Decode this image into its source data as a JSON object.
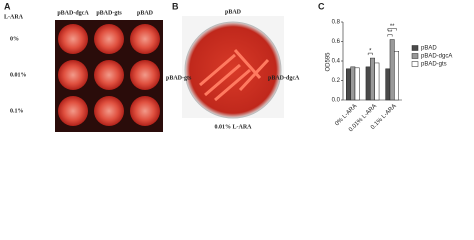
{
  "panel_a": {
    "label": "A",
    "row_header": "L-ARA",
    "columns": [
      "pBAD-dgcA",
      "pBAD-gts",
      "pBAD"
    ],
    "rows": [
      "0%",
      "0.01%",
      "0.1%"
    ]
  },
  "panel_b": {
    "label": "B",
    "top": "pBAD",
    "left": "pBAD-gts",
    "right": "pBAD-dgcA",
    "caption": "0.01% L-ARA"
  },
  "chart_data": {
    "type": "bar",
    "panel_label": "C",
    "y_label": "OD595",
    "categories": [
      "0% L-ARA",
      "0.01% L-ARA",
      "0.1% L-ARA"
    ],
    "series": [
      {
        "name": "pBAD",
        "color": "#4a4a4a",
        "values": [
          0.32,
          0.34,
          0.32
        ]
      },
      {
        "name": "pBAD-dgcA",
        "color": "#9a9a9a",
        "values": [
          0.34,
          0.43,
          0.62
        ]
      },
      {
        "name": "pBAD-gts",
        "color": "#ffffff",
        "values": [
          0.33,
          0.38,
          0.5
        ]
      }
    ],
    "ylim": [
      0,
      0.8
    ],
    "yticks": [
      {
        "value": 0,
        "label": "0.0"
      },
      {
        "value": 0.2,
        "label": "0.2"
      },
      {
        "value": 0.4,
        "label": "0.4"
      },
      {
        "value": 0.6,
        "label": "0.6"
      },
      {
        "value": 0.8,
        "label": "0.8"
      }
    ],
    "annotations": [
      "*",
      "**",
      "**"
    ]
  }
}
